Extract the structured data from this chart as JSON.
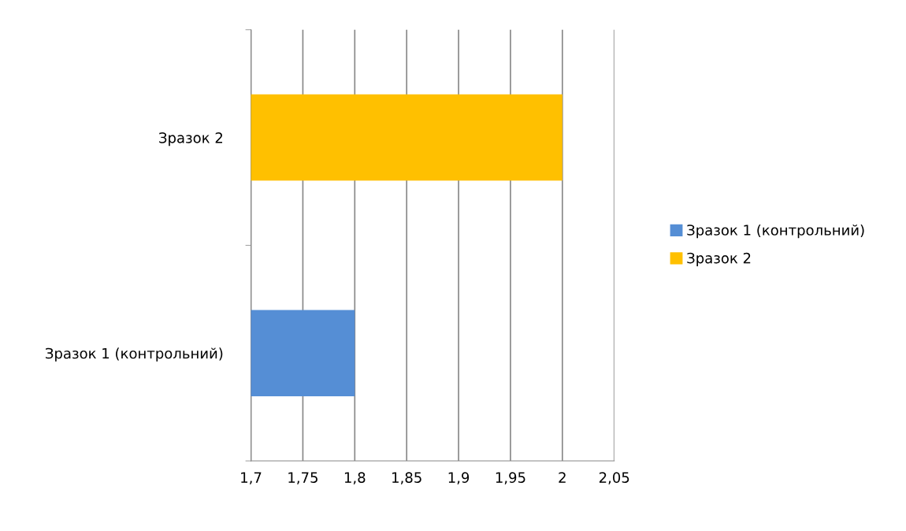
{
  "chart_data": {
    "type": "bar",
    "orientation": "horizontal",
    "stacked": true,
    "categories": [
      "Зразок 2",
      "Зразок 1 (контрольний)"
    ],
    "series": [
      {
        "name": "Зразок 1 (контрольний)",
        "color": "#558ed5",
        "values": [
          null,
          1.8
        ]
      },
      {
        "name": "Зразок 2",
        "color": "#ffc000",
        "values": [
          2.0,
          null
        ]
      }
    ],
    "xlim": [
      1.7,
      2.05
    ],
    "xticks": [
      {
        "value": 1.7,
        "label": "1,7"
      },
      {
        "value": 1.75,
        "label": "1,75"
      },
      {
        "value": 1.8,
        "label": "1,8"
      },
      {
        "value": 1.85,
        "label": "1,85"
      },
      {
        "value": 1.9,
        "label": "1,9"
      },
      {
        "value": 1.95,
        "label": "1,95"
      },
      {
        "value": 2.0,
        "label": "2"
      },
      {
        "value": 2.05,
        "label": "2,05"
      }
    ],
    "grid": "x",
    "legend": "right"
  }
}
